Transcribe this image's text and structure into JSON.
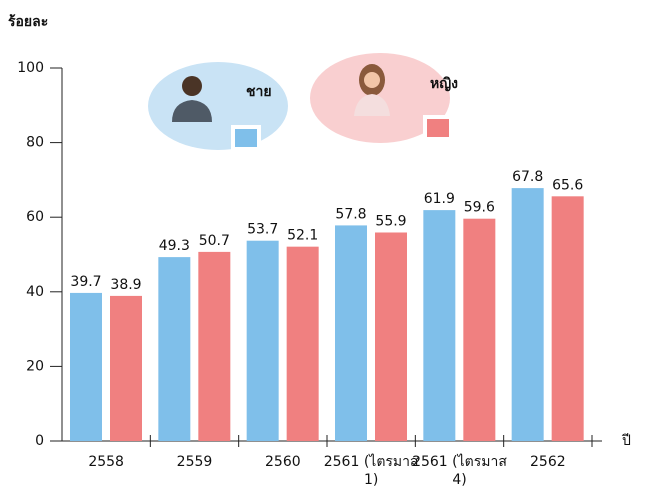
{
  "chart_data": {
    "type": "bar",
    "y_label": "ร้อยละ",
    "x_label": "ปี",
    "categories": [
      "2558",
      "2559",
      "2560",
      "2561 (ไตรมาส 1)",
      "2561 (ไตรมาส 4)",
      "2562"
    ],
    "series": [
      {
        "name": "ชาย",
        "color": "#7fbfea",
        "values": [
          39.7,
          49.3,
          53.7,
          57.8,
          61.9,
          67.8
        ]
      },
      {
        "name": "หญิง",
        "color": "#f08080",
        "values": [
          38.9,
          50.7,
          52.1,
          55.9,
          59.6,
          65.6
        ]
      }
    ],
    "ylim": [
      0,
      100
    ],
    "yticks": [
      0,
      20,
      40,
      60,
      80,
      100
    ]
  }
}
